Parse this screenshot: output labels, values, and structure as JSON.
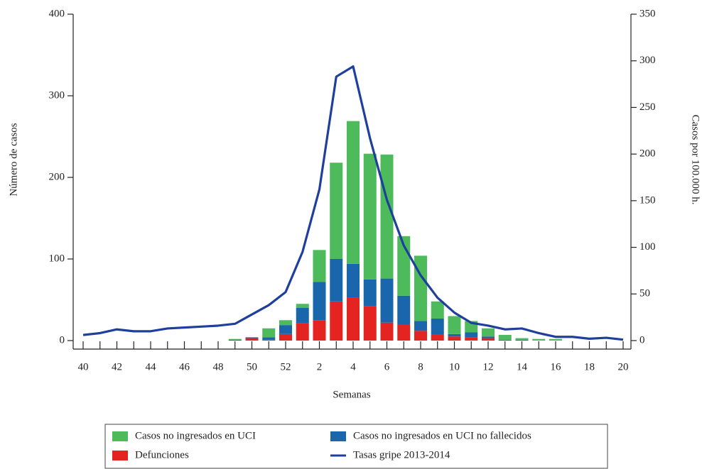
{
  "chart_data": {
    "type": "bar",
    "stacked": true,
    "x_label": "Semanas",
    "y_label": "Número de casos",
    "y2_label": "Casos por 100.000 h.",
    "categories": [
      "40",
      null,
      "42",
      null,
      "44",
      null,
      "46",
      null,
      "48",
      null,
      "50",
      null,
      "52",
      null,
      "2",
      null,
      "4",
      null,
      "6",
      null,
      "8",
      null,
      "10",
      null,
      "12",
      null,
      "14",
      null,
      "16",
      null,
      "18",
      null,
      "20"
    ],
    "ylim": [
      0,
      400
    ],
    "yticks": [
      0,
      100,
      200,
      300,
      400
    ],
    "y2lim": [
      0,
      350
    ],
    "y2ticks": [
      0,
      50,
      100,
      150,
      200,
      250,
      300,
      350
    ],
    "series": [
      {
        "name": "Defunciones",
        "color": "#e42421",
        "values": [
          0,
          0,
          0,
          0,
          0,
          0,
          0,
          0,
          0,
          0,
          3,
          1,
          8,
          21,
          25,
          48,
          53,
          42,
          22,
          20,
          12,
          7,
          5,
          4,
          3,
          0,
          0,
          0,
          0,
          0,
          0,
          0,
          0
        ]
      },
      {
        "name": "Casos no ingresados en UCI no fallecidos",
        "color": "#1a66ad",
        "values": [
          0,
          0,
          0,
          0,
          0,
          0,
          0,
          0,
          0,
          1,
          1,
          3,
          11,
          19,
          47,
          52,
          41,
          33,
          54,
          35,
          12,
          20,
          3,
          6,
          2,
          1,
          1,
          0,
          0,
          0,
          0,
          0,
          0
        ]
      },
      {
        "name": "Casos no ingresados en UCI",
        "color": "#4dba5c",
        "values": [
          0,
          0,
          0,
          0,
          0,
          0,
          0,
          0,
          0,
          1,
          0,
          11,
          6,
          5,
          39,
          118,
          175,
          154,
          152,
          73,
          80,
          21,
          22,
          14,
          10,
          6,
          2,
          2,
          2,
          0,
          0,
          0,
          0
        ]
      },
      {
        "name": "Tasas gripe 2013-2014",
        "color": "#1f3f9c",
        "type": "line",
        "axis": "y2",
        "values": [
          6,
          8,
          12,
          10,
          10,
          13,
          14,
          15,
          16,
          18,
          28,
          38,
          52,
          95,
          162,
          283,
          294,
          217,
          151,
          102,
          70,
          46,
          30,
          19,
          16,
          12,
          13,
          8,
          4,
          4,
          2,
          3,
          1
        ]
      }
    ]
  }
}
